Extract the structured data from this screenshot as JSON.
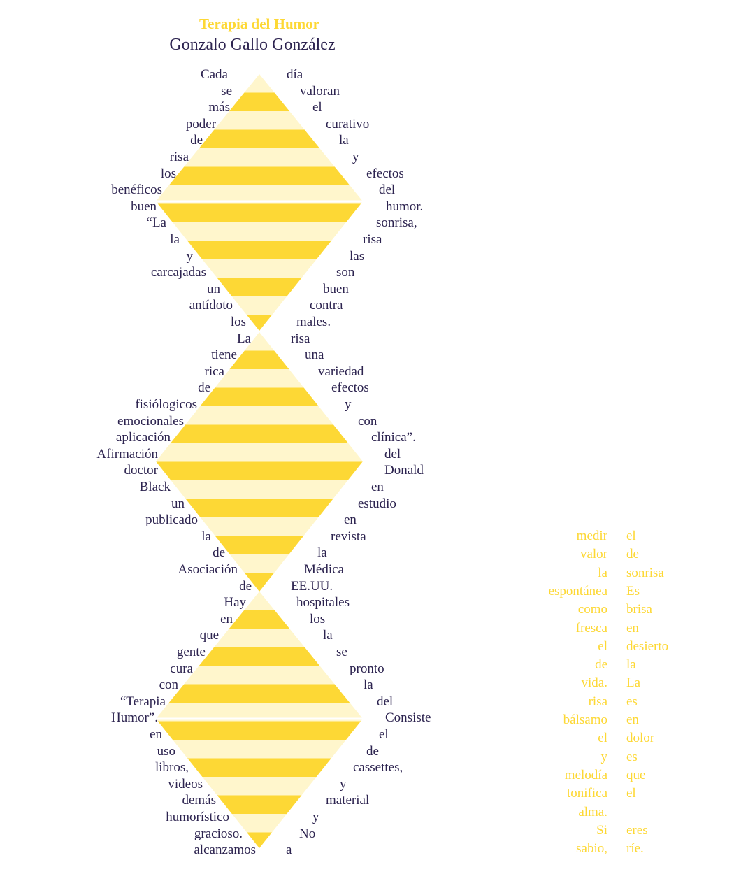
{
  "title": "Terapia del Humor",
  "author": "Gonzalo Gallo González",
  "colors": {
    "title": "#fdd835",
    "text": "#2d2450",
    "stripe_dark": "#fdd835",
    "stripe_light": "#fff6cc",
    "gold_text": "#fdd835"
  },
  "left_words": [
    "Cada",
    "se",
    "más",
    "poder",
    "de",
    "risa",
    "los",
    "benéficos",
    "buen",
    "“La",
    "la",
    "y",
    "carcajadas",
    "un",
    "antídoto",
    "los",
    "La",
    "tiene",
    "rica",
    "de",
    "fisiólogicos",
    "emocionales",
    "aplicación",
    "Afirmación",
    "doctor",
    "Black",
    "un",
    "publicado",
    "la",
    "de",
    "Asociación",
    "de",
    "Hay",
    "en",
    "que",
    "gente",
    "cura",
    "con",
    "“Terapia",
    "Humor”.",
    "en",
    "uso",
    "libros,",
    "videos",
    "demás",
    "humorístico",
    "gracioso.",
    "alcanzamos"
  ],
  "right_words": [
    "día",
    "valoran",
    "el",
    "curativo",
    "la",
    "y",
    "efectos",
    "del",
    "humor.",
    "sonrisa,",
    "risa",
    "las",
    "son",
    "buen",
    "contra",
    "males.",
    "risa",
    "una",
    "variedad",
    "efectos",
    "y",
    "con",
    "clínica”.",
    "del",
    "Donald",
    "en",
    "estudio",
    "en",
    "revista",
    "la",
    "Médica",
    "EE.UU.",
    "hospitales",
    "los",
    "la",
    "se",
    "pronto",
    "la",
    "del",
    "Consiste",
    "el",
    "de",
    "cassettes,",
    "y",
    "material",
    "y",
    "No",
    "a"
  ],
  "gold_left": [
    "medir",
    "valor",
    "la",
    "espontánea",
    "como",
    "fresca",
    "el",
    "de",
    "vida.",
    "risa",
    "bálsamo",
    "el",
    "y",
    "melodía",
    "tonifica",
    "alma.",
    "Si",
    "sabio,"
  ],
  "gold_right": [
    "el",
    "de",
    "sonrisa",
    "Es",
    "brisa",
    "en",
    "desierto",
    "la",
    "La",
    "es",
    "en",
    "dolor",
    "es",
    "que",
    "el",
    "",
    "eres",
    "ríe."
  ]
}
